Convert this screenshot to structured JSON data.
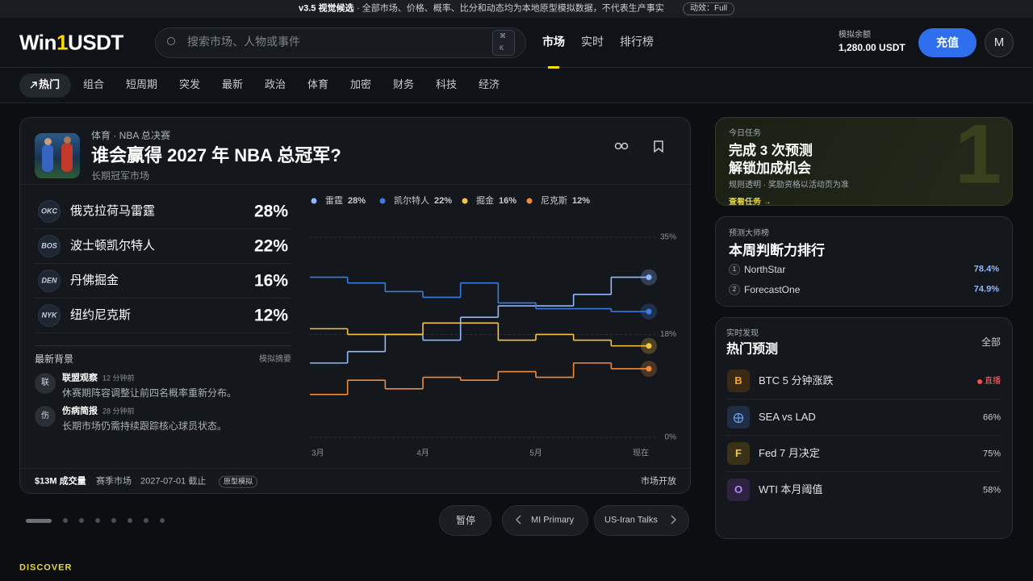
{
  "banner": {
    "version": "v3.5 视觉候选",
    "text": "· 全部市场、价格、概率、比分和动态均为本地原型模拟数据，不代表生产事实",
    "motion": "动效：Full"
  },
  "header": {
    "logo": [
      "Win",
      "1",
      "USDT"
    ],
    "search_placeholder": "搜索市场、人物或事件",
    "shortcut": [
      "⌘",
      "K"
    ],
    "nav": [
      "市场",
      "实时",
      "排行榜"
    ],
    "balance_label": "模拟余额",
    "balance": "1,280.00 USDT",
    "deposit": "充值",
    "avatar": "M"
  },
  "categories": [
    "热门",
    "组合",
    "短周期",
    "突发",
    "最新",
    "政治",
    "体育",
    "加密",
    "财务",
    "科技",
    "经济"
  ],
  "market": {
    "eyebrow": "体育 · NBA 总决赛",
    "title": "谁会赢得 2027 年 NBA 总冠军?",
    "subtitle": "长期冠军市场",
    "outcomes": [
      {
        "abbr": "OKC",
        "name": "俄克拉荷马雷霆",
        "pct": "28%"
      },
      {
        "abbr": "BOS",
        "name": "波士顿凯尔特人",
        "pct": "22%"
      },
      {
        "abbr": "DEN",
        "name": "丹佛掘金",
        "pct": "16%"
      },
      {
        "abbr": "NYK",
        "name": "纽约尼克斯",
        "pct": "12%"
      }
    ],
    "news_title": "最新背景",
    "news_tag": "模拟摘要",
    "news": [
      {
        "icon": "联",
        "source": "联盟观察",
        "time": "12 分钟前",
        "text": "休赛期阵容调整让前四名概率重新分布。"
      },
      {
        "icon": "伤",
        "source": "伤病简报",
        "time": "28 分钟前",
        "text": "长期市场仍需持续跟踪核心球员状态。"
      }
    ],
    "footer": {
      "volume": "$13M 成交量",
      "kind": "赛季市场",
      "close": "2027-07-01 截止",
      "badge": "原型模拟",
      "status": "市场开放"
    }
  },
  "chart_data": {
    "type": "line",
    "line_style": "step",
    "grid": true,
    "categories": [
      "3月",
      null,
      null,
      "4月",
      null,
      null,
      "5月",
      null,
      null,
      "现在"
    ],
    "series": [
      {
        "name": "雷霆",
        "legend_value": "28%",
        "color": "#8fb8ff",
        "values": [
          13,
          15,
          18,
          17,
          21,
          23,
          23,
          25,
          28,
          28
        ]
      },
      {
        "name": "凯尔特人",
        "legend_value": "22%",
        "color": "#3b7be0",
        "values": [
          28,
          27,
          25.5,
          24.5,
          27,
          23.5,
          22.5,
          22.5,
          22,
          22
        ]
      },
      {
        "name": "掘金",
        "legend_value": "16%",
        "color": "#f5c542",
        "values": [
          19,
          18,
          18,
          20,
          20,
          17,
          18,
          17,
          16,
          16
        ]
      },
      {
        "name": "尼克斯",
        "legend_value": "12%",
        "color": "#f08a3c",
        "values": [
          7.5,
          10,
          8.5,
          10.5,
          10,
          11.5,
          10.5,
          13,
          12,
          12
        ]
      }
    ],
    "ylim": [
      0,
      35
    ],
    "yticks": [
      {
        "value": 35,
        "label": "35%"
      },
      {
        "value": 18,
        "label": "18%"
      },
      {
        "value": 0,
        "label": "0%"
      }
    ]
  },
  "carousel": {
    "pause": "暂停",
    "prev": "MI Primary",
    "next": "US-Iran Talks"
  },
  "task": {
    "eyebrow": "今日任务",
    "title": [
      "完成 3 次预测",
      "解锁加成机会"
    ],
    "note": "规则透明 · 奖励资格以活动页为准",
    "link": "查看任务 →",
    "badge": "1"
  },
  "leaderboard": {
    "eyebrow": "预测大师榜",
    "title": "本周判断力排行",
    "rows": [
      {
        "rank": "1",
        "name": "NorthStar",
        "score": "78.4%"
      },
      {
        "rank": "2",
        "name": "ForecastOne",
        "score": "74.9%"
      }
    ]
  },
  "trending": {
    "eyebrow": "实时发现",
    "title": "热门预测",
    "all": "全部",
    "items": [
      {
        "icon": "B",
        "name": "BTC 5 分钟涨跌",
        "stat": "直播"
      },
      {
        "name": "SEA vs LAD",
        "stat": "66%"
      },
      {
        "icon": "F",
        "name": "Fed 7 月决定",
        "stat": "75%"
      },
      {
        "icon": "O",
        "name": "WTI 本月阈值",
        "stat": "58%"
      }
    ]
  },
  "discover": "DISCOVER"
}
